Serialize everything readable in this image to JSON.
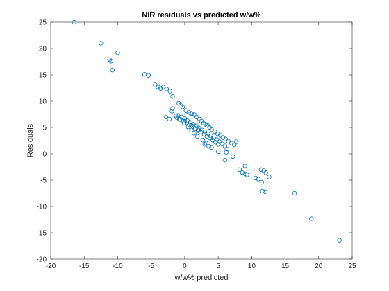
{
  "chart_data": {
    "type": "scatter",
    "title": "NIR residuals vs predicted w/w%",
    "xlabel": "w/w% predicted",
    "ylabel": "Residuals",
    "xlim": [
      -20,
      25
    ],
    "ylim": [
      -20,
      25
    ],
    "xticks": [
      -20,
      -15,
      -10,
      -5,
      0,
      5,
      10,
      15,
      20,
      25
    ],
    "yticks": [
      -20,
      -15,
      -10,
      -5,
      0,
      5,
      10,
      15,
      20,
      25
    ],
    "grid": false,
    "marker": "circle-open",
    "marker_color": "#0072BD",
    "series": [
      {
        "x": [
          -16.5,
          -12.5,
          -11.2,
          -11.0,
          -10.0,
          -10.8,
          -6.0,
          -5.4,
          -4.4,
          -4.0,
          -3.6,
          -3.2,
          -2.7,
          -2.2,
          -1.8,
          -0.9,
          -0.6,
          -0.3,
          0.2,
          0.6,
          0.9,
          1.1,
          1.5,
          1.8,
          2.2,
          2.5,
          2.8,
          3.1,
          3.4,
          3.7,
          4.0,
          4.5,
          4.9,
          5.3,
          5.7,
          6.1,
          6.5,
          7.0,
          7.4,
          7.7,
          -1.0,
          -0.5,
          0.0,
          0.4,
          0.8,
          1.3,
          1.7,
          2.1,
          2.6,
          3.0,
          3.5,
          3.9,
          4.3,
          4.8,
          5.2,
          5.6,
          6.0,
          6.3,
          -1.2,
          -0.7,
          -0.2,
          0.3,
          0.7,
          1.2,
          1.6,
          2.0,
          2.4,
          2.9,
          3.3,
          3.8,
          4.2,
          4.6,
          5.0,
          -1.8,
          -1.3,
          -0.8,
          -0.1,
          0.5,
          1.0,
          1.4,
          1.9,
          2.7,
          3.2,
          3.6,
          -2.8,
          -2.3,
          -1.9,
          0.0,
          1.0,
          2.0,
          3.0,
          4.0,
          5.0,
          6.2,
          8.2,
          8.6,
          9.0,
          9.3,
          10.6,
          11.0,
          11.4,
          11.8,
          12.1,
          12.6,
          11.5,
          12.0,
          11.6,
          16.4,
          18.9,
          23.1,
          9.0,
          7.2,
          6.0
        ],
        "y": [
          25.0,
          21.0,
          17.9,
          17.6,
          19.2,
          15.9,
          15.1,
          14.9,
          13.1,
          12.7,
          12.4,
          12.7,
          12.3,
          11.9,
          10.9,
          9.6,
          9.2,
          8.9,
          8.2,
          7.9,
          7.7,
          7.6,
          7.4,
          7.0,
          6.6,
          6.2,
          5.8,
          5.6,
          5.4,
          5.0,
          4.6,
          4.2,
          3.8,
          3.5,
          3.1,
          2.8,
          2.4,
          2.0,
          1.7,
          2.3,
          7.3,
          7.0,
          6.7,
          6.3,
          6.0,
          5.6,
          5.3,
          4.9,
          4.5,
          4.2,
          3.8,
          3.4,
          3.0,
          2.7,
          2.3,
          1.9,
          1.5,
          0.9,
          6.9,
          6.6,
          6.2,
          5.9,
          5.5,
          5.2,
          4.8,
          4.4,
          4.1,
          3.7,
          3.3,
          3.0,
          2.6,
          2.2,
          1.8,
          8.6,
          7.2,
          6.5,
          5.8,
          5.1,
          4.5,
          3.9,
          3.3,
          2.6,
          2.0,
          1.4,
          7.0,
          6.6,
          8.1,
          6.2,
          5.4,
          4.6,
          1.8,
          1.2,
          0.4,
          0.3,
          -3.0,
          -3.6,
          -3.8,
          -4.0,
          -4.6,
          -4.8,
          -3.0,
          -3.2,
          -3.6,
          -4.4,
          -5.4,
          -7.2,
          -7.1,
          -7.5,
          -12.3,
          -16.4,
          -2.3,
          -0.5,
          -1.2
        ]
      }
    ]
  }
}
